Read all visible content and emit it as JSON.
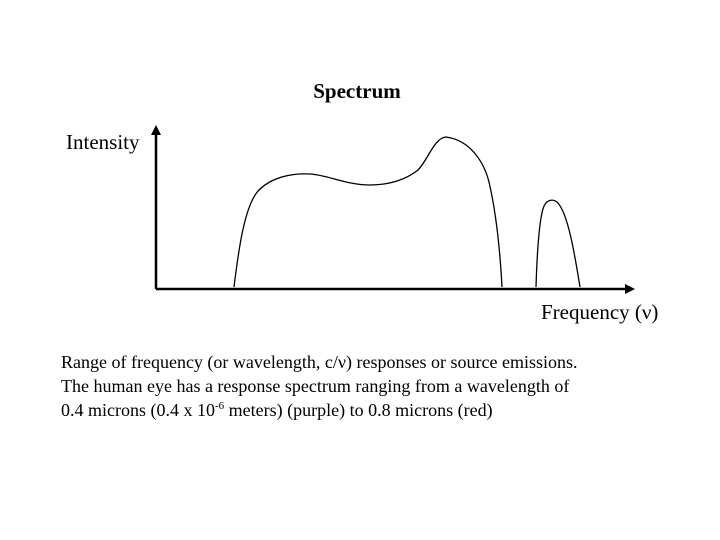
{
  "title": "Spectrum",
  "y_axis_label": "Intensity",
  "x_axis_label": "Frequency (ν)",
  "caption": {
    "line1": "Range of frequency (or wavelength, c/ν) responses or source emissions.",
    "line2": "The human eye has a response spectrum ranging from a wavelength of",
    "line3_before_superscript": "0.4 microns (0.4 x 10",
    "line3_superscript": "-6",
    "line3_after_superscript": " meters) (purple) to 0.8 microns (red)"
  },
  "colors": {
    "ink": "#000000",
    "background": "#ffffff"
  }
}
